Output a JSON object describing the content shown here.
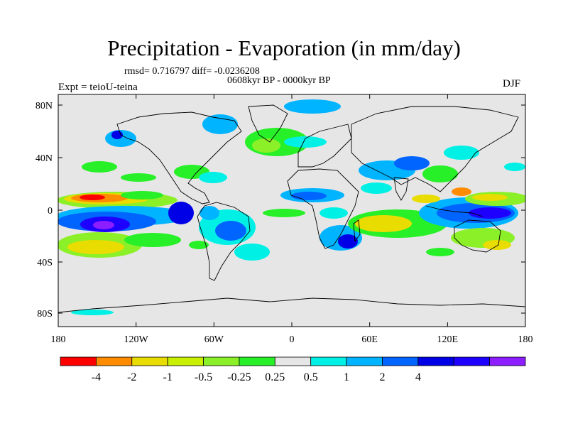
{
  "title": "Precipitation - Evaporation (in mm/day)",
  "stats": "rmsd= 0.716797 diff= -0.0236208",
  "period": "0608kyr BP - 0000kyr BP",
  "experiment": "Expt = teioU-teina",
  "season": "DJF",
  "axes": {
    "lon_ticks": [
      "180",
      "120W",
      "60W",
      "0",
      "60E",
      "120E",
      "180"
    ],
    "lat_ticks": [
      "80N",
      "40N",
      "0",
      "40S",
      "80S"
    ]
  },
  "colorbar": {
    "colors": [
      "#ff0000",
      "#ff8c00",
      "#e8dc00",
      "#c8f000",
      "#8cf028",
      "#28f028",
      "#e6e6e6",
      "#00f0e6",
      "#00b4ff",
      "#0064ff",
      "#0000e6",
      "#1e00ff",
      "#8c1eff"
    ],
    "labels": [
      "-4",
      "-2",
      "-1",
      "-0.5",
      "-0.25",
      "0.25",
      "0.5",
      "1",
      "2",
      "4"
    ]
  },
  "colors": {
    "background": "#e6e6e6",
    "coast": "#000000"
  }
}
